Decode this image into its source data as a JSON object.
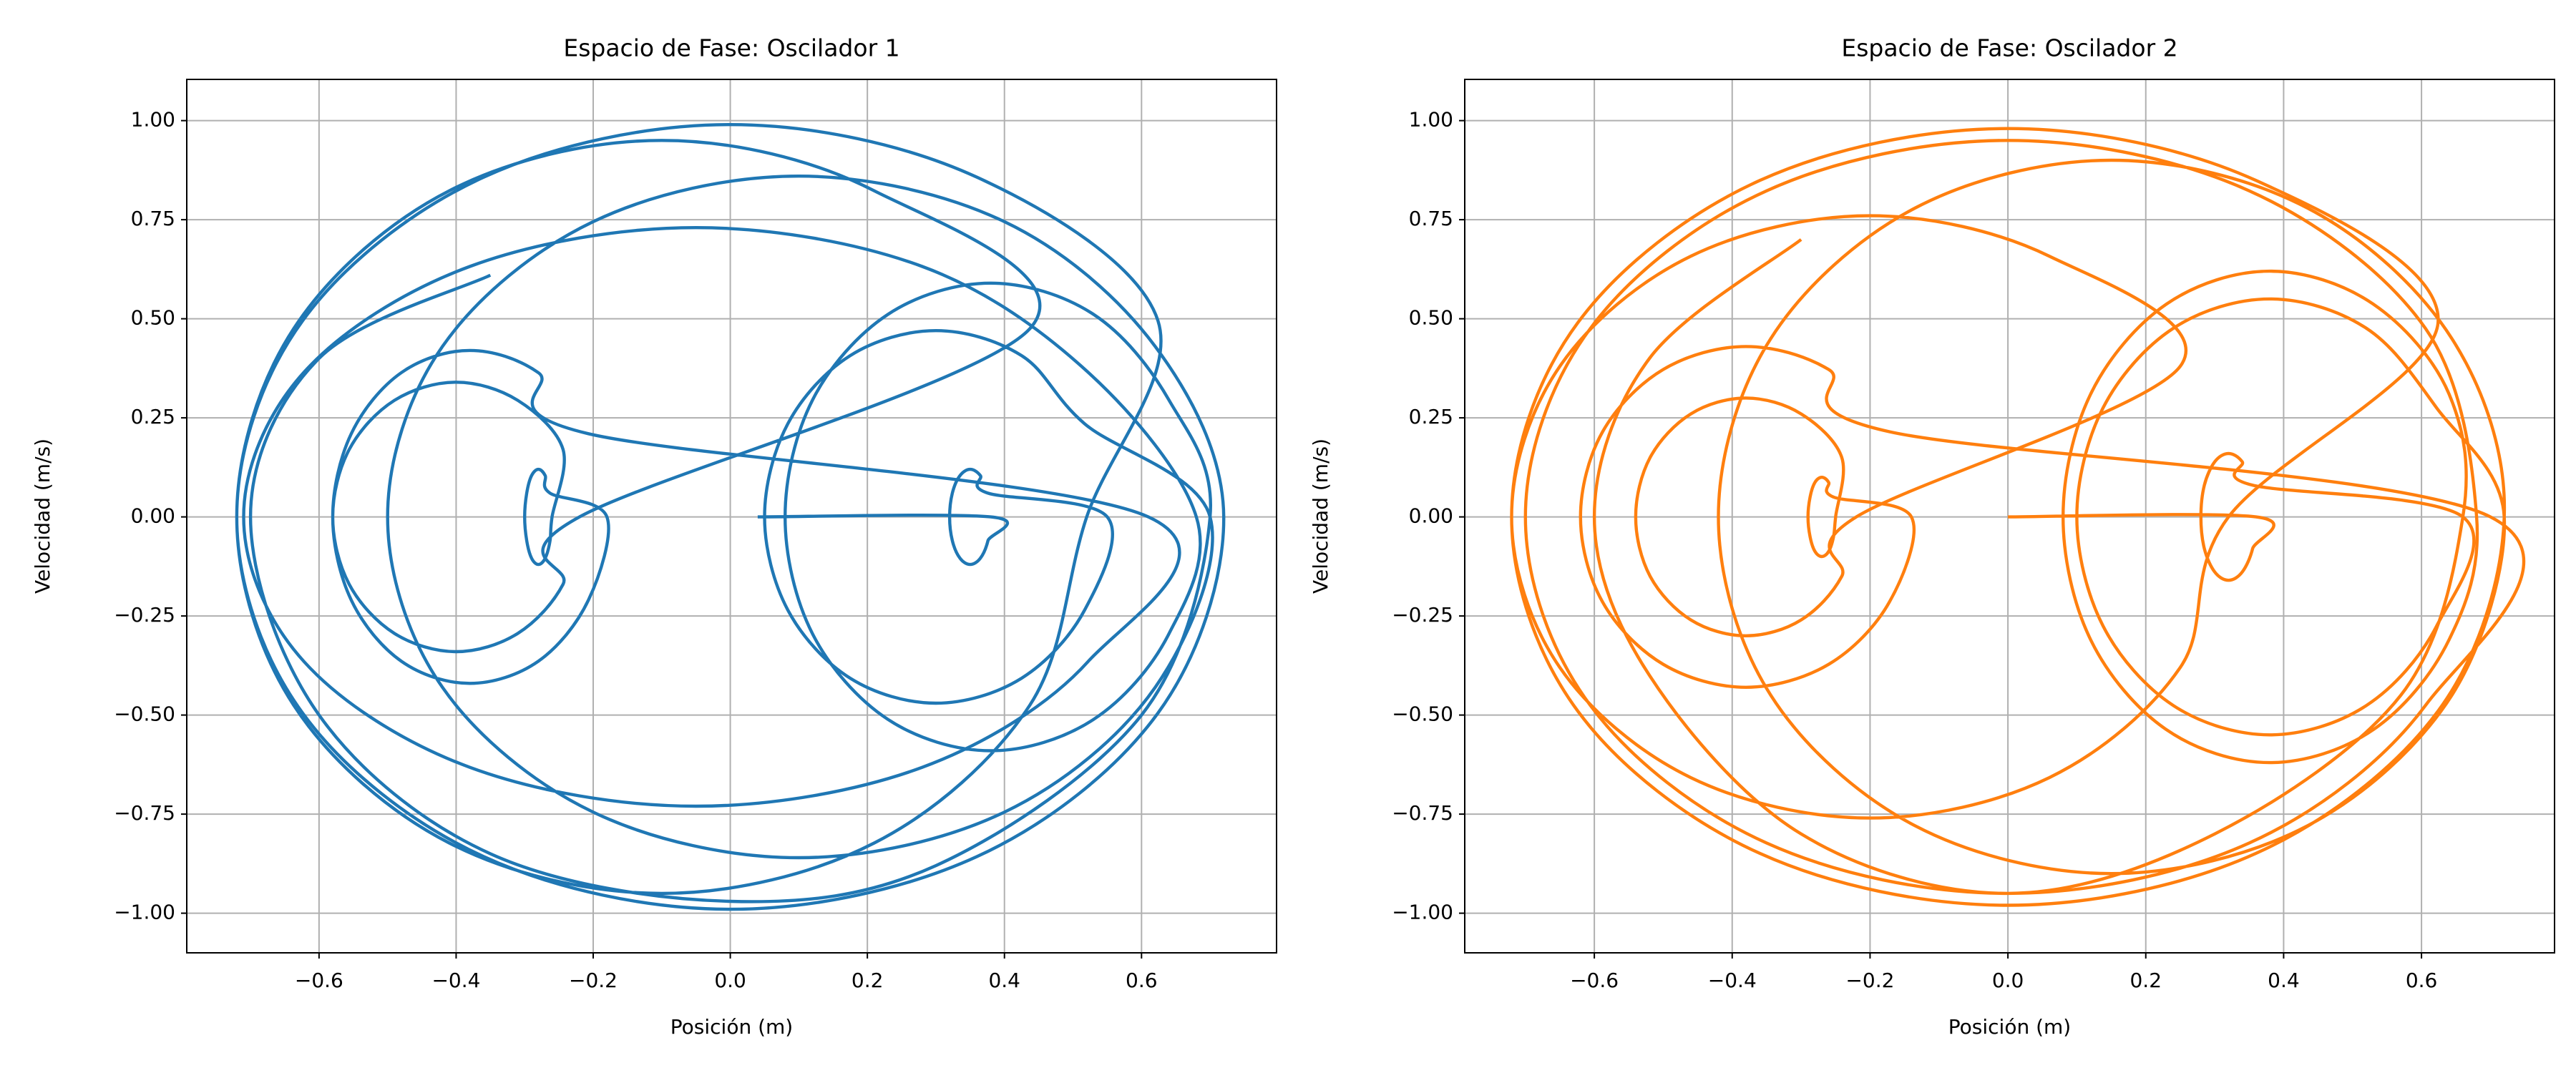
{
  "chart_data": [
    {
      "type": "line",
      "title": "Espacio de Fase: Oscilador 1",
      "xlabel": "Posición (m)",
      "ylabel": "Velocidad (m/s)",
      "xlim": [
        -0.793,
        0.797
      ],
      "ylim": [
        -1.1,
        1.104
      ],
      "grid": true,
      "xticks": [
        {
          "value": -0.6,
          "label": "−0.6"
        },
        {
          "value": -0.4,
          "label": "−0.4"
        },
        {
          "value": -0.2,
          "label": "−0.2"
        },
        {
          "value": 0,
          "label": "0.0"
        },
        {
          "value": 0.2,
          "label": "0.2"
        },
        {
          "value": 0.4,
          "label": "0.4"
        },
        {
          "value": 0.6,
          "label": "0.6"
        }
      ],
      "yticks": [
        {
          "value": -1,
          "label": "−1.00"
        },
        {
          "value": -0.75,
          "label": "−0.75"
        },
        {
          "value": -0.5,
          "label": "−0.50"
        },
        {
          "value": -0.25,
          "label": "−0.25"
        },
        {
          "value": 0,
          "label": "0.00"
        },
        {
          "value": 0.25,
          "label": "0.25"
        },
        {
          "value": 0.5,
          "label": "0.50"
        },
        {
          "value": 0.75,
          "label": "0.75"
        },
        {
          "value": 1,
          "label": "1.00"
        }
      ],
      "series": [
        {
          "color": "#1f77b4",
          "x": [
            0.04,
            0.38,
            0.376,
            0.365,
            0.35,
            0.335,
            0.324,
            0.32,
            0.324,
            0.335,
            0.35,
            0.365,
            0.376,
            0.55,
            0.517,
            0.425,
            0.3,
            0.175,
            0.084,
            0.05,
            0.084,
            0.175,
            0.3,
            0.425,
            0.517,
            0.7,
            0.62,
            0.4,
            0.1,
            -0.2,
            -0.42,
            -0.5,
            -0.42,
            -0.2,
            0.1,
            0.4,
            0.62,
            0.72,
            0.624,
            0.36,
            0,
            -0.36,
            -0.624,
            -0.72,
            -0.624,
            -0.36,
            0,
            0.36,
            0.624,
            0.52,
            0.437,
            0.21,
            -0.1,
            -0.41,
            -0.637,
            -0.72,
            -0.637,
            -0.41,
            -0.1,
            0.21,
            0.437,
            -0.22,
            -0.244,
            -0.31,
            -0.4,
            -0.49,
            -0.556,
            -0.58,
            -0.556,
            -0.49,
            -0.4,
            -0.31,
            -0.244,
            -0.26,
            -0.263,
            -0.27,
            -0.28,
            -0.29,
            -0.297,
            -0.3,
            -0.297,
            -0.29,
            -0.28,
            -0.27,
            -0.263,
            -0.18,
            -0.207,
            -0.28,
            -0.38,
            -0.48,
            -0.553,
            -0.58,
            -0.553,
            -0.48,
            -0.38,
            -0.28,
            -0.207,
            0.61,
            0.522,
            0.28,
            -0.05,
            -0.38,
            -0.622,
            -0.71,
            -0.622,
            -0.38,
            -0.05,
            0.28,
            0.522,
            0.68,
            0.64,
            0.53,
            0.38,
            0.23,
            0.12,
            0.08,
            0.12,
            0.23,
            0.38,
            0.53,
            0.64,
            0.7,
            0.6,
            0.3,
            0,
            -0.35,
            -0.6,
            -0.7,
            -0.6,
            -0.35
          ],
          "values": [
            0,
            0,
            -0.06,
            -0.104,
            -0.12,
            -0.104,
            -0.06,
            0,
            0.06,
            0.104,
            0.12,
            0.104,
            0.06,
            0,
            -0.235,
            -0.407,
            -0.47,
            -0.407,
            -0.235,
            0,
            0.235,
            0.407,
            0.47,
            0.407,
            0.235,
            0,
            -0.43,
            -0.745,
            -0.86,
            -0.745,
            -0.43,
            0,
            0.43,
            0.745,
            0.86,
            0.745,
            0.43,
            0,
            -0.495,
            -0.857,
            -0.99,
            -0.857,
            -0.495,
            0,
            0.495,
            0.857,
            0.99,
            0.857,
            0.495,
            0,
            -0.475,
            -0.823,
            -0.95,
            -0.823,
            -0.475,
            0,
            0.475,
            0.823,
            0.95,
            0.823,
            0.475,
            0,
            -0.17,
            -0.294,
            -0.34,
            -0.294,
            -0.17,
            0,
            0.17,
            0.294,
            0.34,
            0.294,
            0.17,
            0,
            -0.06,
            -0.104,
            -0.12,
            -0.104,
            -0.06,
            0,
            0.06,
            0.104,
            0.12,
            0.104,
            0.06,
            0,
            -0.21,
            -0.364,
            -0.42,
            -0.364,
            -0.21,
            0,
            0.21,
            0.364,
            0.42,
            0.364,
            0.21,
            0,
            -0.365,
            -0.632,
            -0.73,
            -0.632,
            -0.365,
            0,
            0.365,
            0.632,
            0.73,
            0.632,
            0.365,
            0,
            -0.295,
            -0.511,
            -0.59,
            -0.511,
            -0.295,
            0,
            0.295,
            0.511,
            0.59,
            0.511,
            0.295,
            0,
            -0.5,
            -0.88,
            -0.97,
            -0.85,
            -0.5,
            0,
            0.4,
            0.61
          ]
        }
      ]
    },
    {
      "type": "line",
      "title": "Espacio de Fase: Oscilador 2",
      "xlabel": "Posición (m)",
      "ylabel": "Velocidad (m/s)",
      "xlim": [
        -0.788,
        0.793
      ],
      "ylim": [
        -1.1,
        1.104
      ],
      "grid": true,
      "xticks": [
        {
          "value": -0.6,
          "label": "−0.6"
        },
        {
          "value": -0.4,
          "label": "−0.4"
        },
        {
          "value": -0.2,
          "label": "−0.2"
        },
        {
          "value": 0,
          "label": "0.0"
        },
        {
          "value": 0.2,
          "label": "0.2"
        },
        {
          "value": 0.4,
          "label": "0.4"
        },
        {
          "value": 0.6,
          "label": "0.6"
        }
      ],
      "yticks": [
        {
          "value": -1,
          "label": "−1.00"
        },
        {
          "value": -0.75,
          "label": "−0.75"
        },
        {
          "value": -0.5,
          "label": "−0.50"
        },
        {
          "value": -0.25,
          "label": "−0.25"
        },
        {
          "value": 0,
          "label": "0.00"
        },
        {
          "value": 0.25,
          "label": "0.25"
        },
        {
          "value": 0.5,
          "label": "0.50"
        },
        {
          "value": 0.75,
          "label": "0.75"
        },
        {
          "value": 1,
          "label": "1.00"
        }
      ],
      "series": [
        {
          "color": "#ff7f0e",
          "x": [
            0,
            0.36,
            0.355,
            0.34,
            0.32,
            0.3,
            0.285,
            0.28,
            0.285,
            0.3,
            0.32,
            0.34,
            0.355,
            0.66,
            0.622,
            0.52,
            0.38,
            0.24,
            0.138,
            0.1,
            0.138,
            0.24,
            0.38,
            0.52,
            0.622,
            0.72,
            0.644,
            0.435,
            0.15,
            -0.135,
            -0.344,
            -0.42,
            -0.344,
            -0.135,
            0.15,
            0.435,
            0.644,
            0.72,
            0.624,
            0.36,
            0,
            -0.36,
            -0.624,
            -0.72,
            -0.624,
            -0.36,
            0,
            0.36,
            0.624,
            0.32,
            0.25,
            0.06,
            -0.2,
            -0.46,
            -0.65,
            -0.72,
            -0.65,
            -0.46,
            -0.2,
            0.06,
            0.25,
            -0.22,
            -0.241,
            -0.3,
            -0.38,
            -0.46,
            -0.519,
            -0.54,
            -0.519,
            -0.46,
            -0.38,
            -0.3,
            -0.241,
            -0.25,
            -0.253,
            -0.26,
            -0.27,
            -0.28,
            -0.287,
            -0.29,
            -0.287,
            -0.28,
            -0.27,
            -0.26,
            -0.253,
            -0.14,
            -0.172,
            -0.26,
            -0.38,
            -0.5,
            -0.588,
            -0.62,
            -0.588,
            -0.5,
            -0.38,
            -0.26,
            -0.172,
            0.7,
            0.606,
            0.35,
            0,
            -0.35,
            -0.606,
            -0.7,
            -0.606,
            -0.35,
            0,
            0.35,
            0.606,
            0.68,
            0.64,
            0.53,
            0.38,
            0.23,
            0.12,
            0.08,
            0.12,
            0.23,
            0.38,
            0.53,
            0.64,
            0.66,
            0.57,
            0.3,
            0,
            -0.3,
            -0.52,
            -0.6,
            -0.52,
            -0.3
          ],
          "values": [
            0,
            0,
            -0.08,
            -0.139,
            -0.16,
            -0.139,
            -0.08,
            0,
            0.08,
            0.139,
            0.16,
            0.139,
            0.08,
            0,
            -0.275,
            -0.476,
            -0.55,
            -0.476,
            -0.275,
            0,
            0.275,
            0.476,
            0.55,
            0.476,
            0.275,
            0,
            -0.45,
            -0.779,
            -0.9,
            -0.779,
            -0.45,
            0,
            0.45,
            0.779,
            0.9,
            0.779,
            0.45,
            0,
            -0.49,
            -0.849,
            -0.98,
            -0.849,
            -0.49,
            0,
            0.49,
            0.849,
            0.98,
            0.849,
            0.49,
            0,
            -0.38,
            -0.658,
            -0.76,
            -0.658,
            -0.38,
            0,
            0.38,
            0.658,
            0.76,
            0.658,
            0.38,
            0,
            -0.15,
            -0.26,
            -0.3,
            -0.26,
            -0.15,
            0,
            0.15,
            0.26,
            0.3,
            0.26,
            0.15,
            0,
            -0.05,
            -0.087,
            -0.1,
            -0.087,
            -0.05,
            0,
            0.05,
            0.087,
            0.1,
            0.087,
            0.05,
            0,
            -0.215,
            -0.372,
            -0.43,
            -0.372,
            -0.215,
            0,
            0.215,
            0.372,
            0.43,
            0.372,
            0.215,
            0,
            -0.475,
            -0.823,
            -0.95,
            -0.823,
            -0.475,
            0,
            0.475,
            0.823,
            0.95,
            0.823,
            0.475,
            0,
            -0.31,
            -0.537,
            -0.62,
            -0.537,
            -0.31,
            0,
            0.31,
            0.537,
            0.62,
            0.537,
            0.31,
            0,
            -0.45,
            -0.8,
            -0.95,
            -0.8,
            -0.4,
            0,
            0.4,
            0.7
          ]
        }
      ]
    }
  ]
}
